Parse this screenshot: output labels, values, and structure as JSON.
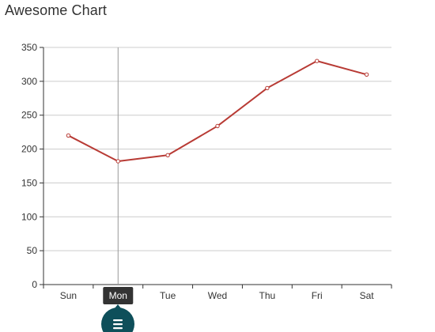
{
  "title": "Awesome Chart",
  "colors": {
    "series": "#b83b35",
    "grid": "#cccccc",
    "axis": "#333333",
    "tooltip_bg": "#333333",
    "menu_button": "#0e4f5a"
  },
  "toolbar": {
    "menu_icon": "hamburger-menu-icon"
  },
  "chart_data": {
    "type": "line",
    "title": "Awesome Chart",
    "categories": [
      "Sun",
      "Mon",
      "Tue",
      "Wed",
      "Thu",
      "Fri",
      "Sat"
    ],
    "series": [
      {
        "values": [
          220,
          182,
          191,
          234,
          290,
          330,
          310
        ],
        "color": "#b83b35"
      }
    ],
    "xlabel": "",
    "ylabel": "",
    "ylim": [
      0,
      350
    ],
    "yticks": [
      "0",
      "50",
      "100",
      "150",
      "200",
      "250",
      "300",
      "350"
    ],
    "grid": true,
    "legend": "none",
    "highlighted_category": "Mon"
  }
}
